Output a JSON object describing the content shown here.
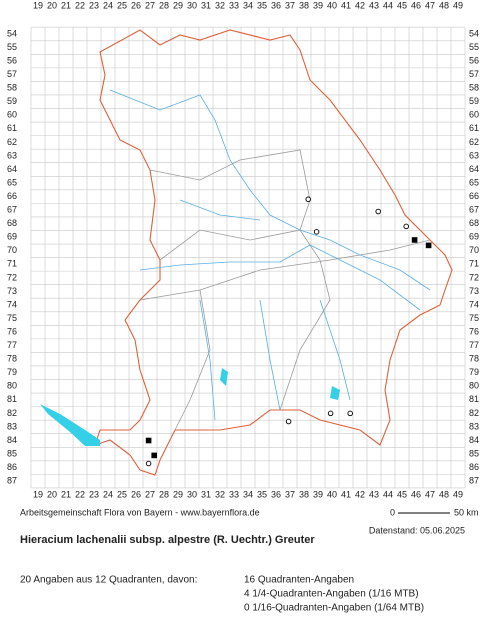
{
  "map": {
    "title": "Hieracium lachenalii subsp. alpestre (R. Uechtr.) Greuter",
    "credit": "Arbeitsgemeinschaft Flora von Bayern - www.bayernflora.de",
    "date": "Datenstand: 05.06.2025",
    "scale": {
      "start": "0",
      "end": "50 km"
    },
    "xticks": [
      19,
      20,
      21,
      22,
      23,
      24,
      25,
      26,
      27,
      28,
      29,
      30,
      31,
      32,
      33,
      34,
      35,
      36,
      37,
      38,
      39,
      40,
      41,
      42,
      43,
      44,
      45,
      46,
      47,
      48,
      49
    ],
    "yticks": [
      54,
      55,
      56,
      57,
      58,
      59,
      60,
      61,
      62,
      63,
      64,
      65,
      66,
      67,
      68,
      69,
      70,
      71,
      72,
      73,
      74,
      75,
      76,
      77,
      78,
      79,
      80,
      81,
      82,
      83,
      84,
      85,
      86,
      87
    ],
    "markers": [
      {
        "x": 45.9,
        "y": 69.2,
        "kind": "square"
      },
      {
        "x": 46.9,
        "y": 69.6,
        "kind": "square"
      },
      {
        "x": 26.9,
        "y": 84.0,
        "kind": "square"
      },
      {
        "x": 27.3,
        "y": 85.1,
        "kind": "square"
      },
      {
        "x": 38.3,
        "y": 66.2,
        "kind": "circle"
      },
      {
        "x": 43.3,
        "y": 67.1,
        "kind": "circle"
      },
      {
        "x": 45.3,
        "y": 68.2,
        "kind": "circle"
      },
      {
        "x": 38.9,
        "y": 68.6,
        "kind": "circle"
      },
      {
        "x": 36.9,
        "y": 82.6,
        "kind": "circle"
      },
      {
        "x": 39.9,
        "y": 82.0,
        "kind": "circle"
      },
      {
        "x": 41.3,
        "y": 82.0,
        "kind": "circle"
      },
      {
        "x": 26.9,
        "y": 85.7,
        "kind": "circle"
      }
    ],
    "summary": {
      "total": "20 Angaben aus 12 Quadranten, davon:",
      "lines": [
        "16 Quadranten-Angaben",
        "4 1/4-Quadranten-Angaben (1/16 MTB)",
        "0 1/16-Quadranten-Angaben (1/64 MTB)"
      ]
    }
  }
}
